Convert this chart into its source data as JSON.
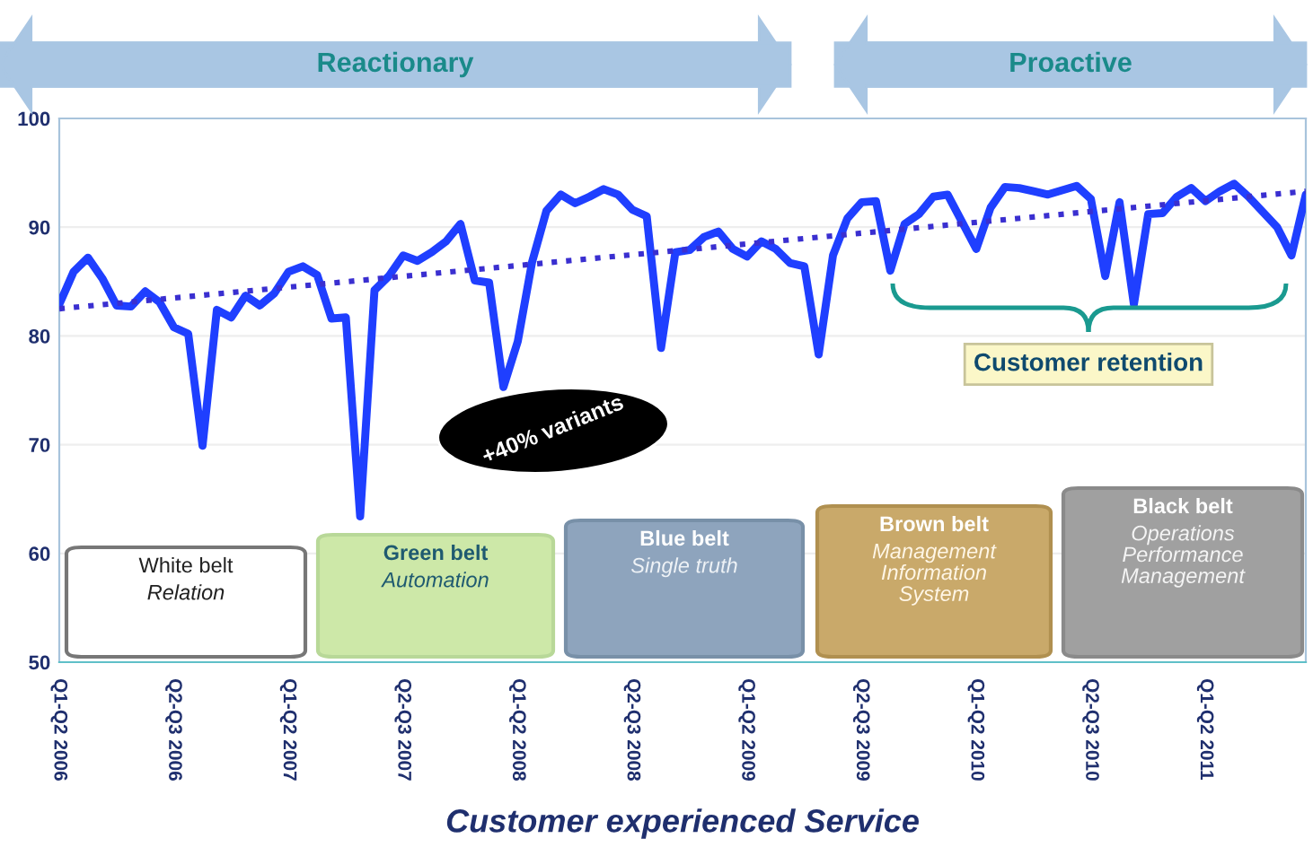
{
  "chart_data": {
    "type": "line",
    "xlabel": "Customer experienced Service",
    "categories": [
      "Q1-Q2 2006",
      null,
      null,
      null,
      null,
      null,
      null,
      null,
      "Q2-Q3 2006",
      null,
      null,
      null,
      null,
      null,
      null,
      null,
      "Q1-Q2 2007",
      null,
      null,
      null,
      null,
      null,
      null,
      null,
      "Q2-Q3 2007",
      null,
      null,
      null,
      null,
      null,
      null,
      null,
      "Q1-Q2 2008",
      null,
      null,
      null,
      null,
      null,
      null,
      null,
      "Q2-Q3 2008",
      null,
      null,
      null,
      null,
      null,
      null,
      null,
      "Q1-Q2 2009",
      null,
      null,
      null,
      null,
      null,
      null,
      null,
      "Q2-Q3 2009",
      null,
      null,
      null,
      null,
      null,
      null,
      null,
      "Q1-Q2 2010",
      null,
      null,
      null,
      null,
      null,
      null,
      null,
      "Q2-Q3 2010",
      null,
      null,
      null,
      null,
      null,
      null,
      null,
      "Q1-Q2 2011",
      null,
      null,
      null,
      null,
      null,
      null,
      null
    ],
    "ylim": [
      50,
      100
    ],
    "yticks": [
      50,
      60,
      70,
      80,
      90,
      100
    ],
    "grid": "y",
    "series": [
      {
        "color": "#1f3fff",
        "line_style": "solid",
        "values": [
          82.9,
          85.9,
          87.2,
          85.3,
          82.8,
          82.7,
          84.1,
          83.1,
          80.8,
          80.2,
          69.9,
          82.4,
          81.7,
          83.7,
          82.8,
          83.9,
          85.9,
          86.4,
          85.6,
          81.6,
          81.7,
          63.4,
          84.2,
          85.5,
          87.4,
          86.9,
          87.7,
          88.7,
          90.3,
          85.1,
          84.9,
          75.3,
          79.5,
          86.8,
          91.5,
          93.0,
          92.2,
          92.8,
          93.5,
          93.0,
          91.6,
          91.0,
          78.9,
          87.7,
          87.9,
          89.1,
          89.6,
          88.0,
          87.3,
          88.7,
          88.0,
          86.7,
          86.4,
          78.3,
          87.4,
          90.8,
          92.3,
          92.4,
          86.0,
          90.3,
          91.2,
          92.8,
          93.0,
          90.5,
          88.0,
          91.8,
          93.7,
          93.6,
          93.3,
          93.0,
          93.4,
          93.8,
          92.6,
          85.5,
          92.3,
          82.9,
          91.2,
          91.3,
          92.8,
          93.6,
          92.4,
          93.3,
          94.0,
          92.8,
          91.4,
          90.0,
          87.4,
          93.0
        ]
      },
      {
        "color": "#3a2fd0",
        "line_style": "dotted",
        "values": [
          82.5,
          null,
          null,
          null,
          null,
          null,
          null,
          null,
          null,
          null,
          null,
          null,
          null,
          null,
          null,
          null,
          null,
          null,
          null,
          null,
          null,
          null,
          null,
          null,
          null,
          null,
          null,
          null,
          null,
          null,
          null,
          null,
          null,
          null,
          null,
          null,
          null,
          null,
          null,
          null,
          null,
          null,
          null,
          null,
          null,
          null,
          null,
          null,
          null,
          null,
          null,
          null,
          null,
          null,
          null,
          null,
          null,
          null,
          null,
          null,
          null,
          null,
          null,
          null,
          null,
          null,
          null,
          null,
          null,
          null,
          null,
          null,
          null,
          null,
          null,
          null,
          null,
          null,
          null,
          null,
          null,
          null,
          null,
          null,
          null,
          null,
          null,
          93.3
        ]
      }
    ],
    "annotations": [
      "Reactionary",
      "Proactive",
      "+40% variants",
      "Customer retention",
      "White belt\nRelation",
      "Green belt\nAutomation",
      "Blue belt\nSingle truth",
      "Brown belt\nManagement\nInformation\nSystem",
      "Black belt\nOperations\nPerformance\nManagement"
    ]
  }
}
